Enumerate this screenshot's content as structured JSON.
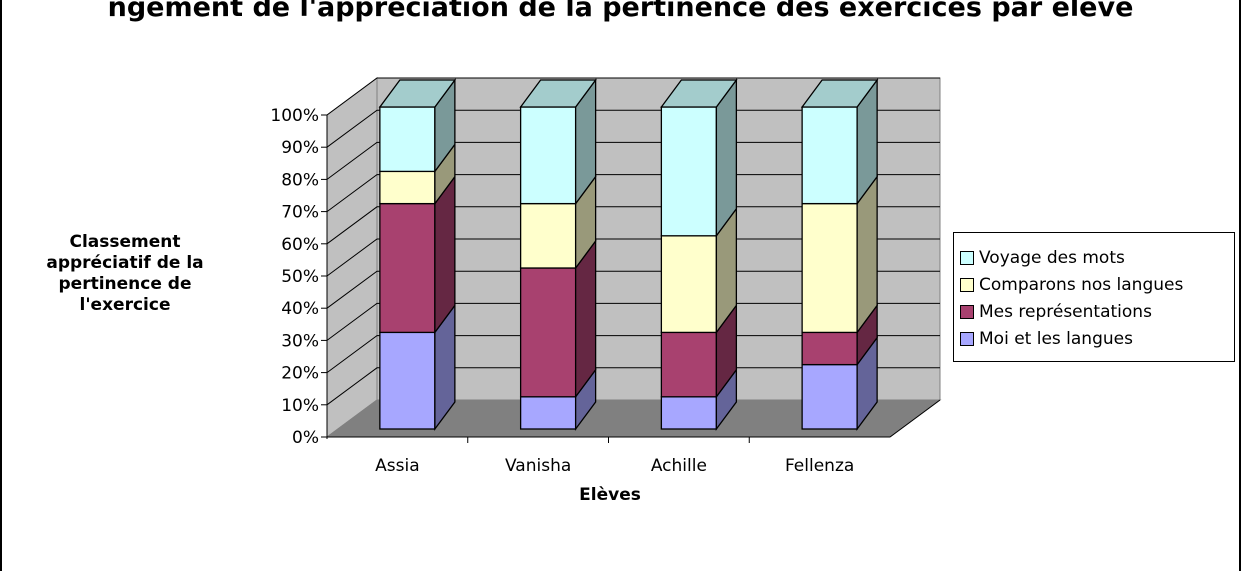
{
  "chart_data": {
    "type": "bar",
    "stacked": true,
    "percent_stacked": true,
    "three_d": true,
    "title": "ngement de l'appréciation de la pertinence des exercices par élève",
    "xlabel": "Elèves",
    "ylabel": "Classement appréciatif de la pertinence de l'exercice",
    "categories": [
      "Assia",
      "Vanisha",
      "Achille",
      "Fellenza"
    ],
    "series": [
      {
        "name": "Moi et les langues",
        "values": [
          30,
          10,
          10,
          20
        ],
        "color": "#A7A7FF"
      },
      {
        "name": "Mes représentations",
        "values": [
          40,
          40,
          20,
          10
        ],
        "color": "#A8416F"
      },
      {
        "name": "Comparons nos langues",
        "values": [
          10,
          20,
          30,
          40
        ],
        "color": "#FFFFCC"
      },
      {
        "name": "Voyage des mots",
        "values": [
          20,
          30,
          40,
          30
        ],
        "color": "#CCFFFF"
      }
    ],
    "legend_order": [
      "Voyage des mots",
      "Comparons nos langues",
      "Mes représentations",
      "Moi et les langues"
    ],
    "yticks": [
      "0%",
      "10%",
      "20%",
      "30%",
      "40%",
      "50%",
      "60%",
      "70%",
      "80%",
      "90%",
      "100%"
    ],
    "ylim": [
      0,
      100
    ],
    "grid": true,
    "legend_position": "right",
    "wall_color": "#C0C0C0",
    "floor_color": "#808080"
  }
}
